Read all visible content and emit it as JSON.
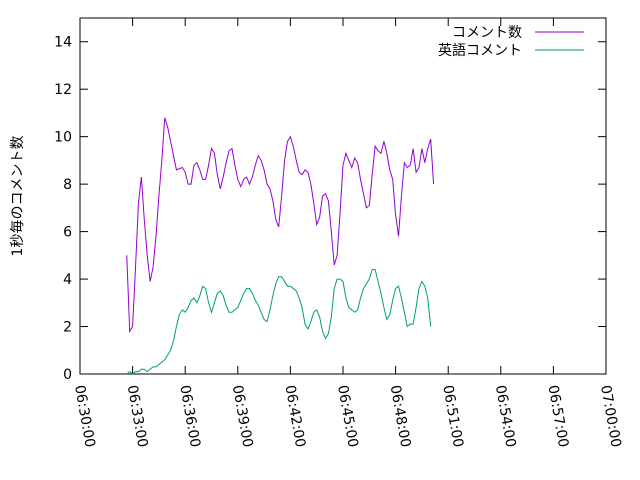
{
  "chart_data": {
    "type": "line",
    "title": "",
    "xlabel": "",
    "ylabel": "1秒毎のコメント数",
    "xlim": [
      "06:30:00",
      "07:00:00"
    ],
    "ylim": [
      0,
      15
    ],
    "grid": false,
    "legend": {
      "position": "top-right"
    },
    "x_ticks": [
      "06:30:00",
      "06:33:00",
      "06:36:00",
      "06:39:00",
      "06:42:00",
      "06:45:00",
      "06:48:00",
      "06:51:00",
      "06:54:00",
      "06:57:00",
      "07:00:00"
    ],
    "y_ticks": [
      0,
      2,
      4,
      6,
      8,
      10,
      12,
      14
    ],
    "series": [
      {
        "name": "コメント数",
        "color": "#9400d3",
        "points": [
          [
            "06:32:40",
            5.0
          ],
          [
            "06:32:50",
            1.8
          ],
          [
            "06:33:00",
            2.0
          ],
          [
            "06:33:10",
            4.5
          ],
          [
            "06:33:20",
            7.2
          ],
          [
            "06:33:30",
            8.3
          ],
          [
            "06:33:40",
            6.5
          ],
          [
            "06:33:50",
            5.0
          ],
          [
            "06:34:00",
            3.9
          ],
          [
            "06:34:10",
            4.5
          ],
          [
            "06:34:20",
            5.8
          ],
          [
            "06:34:30",
            7.5
          ],
          [
            "06:34:40",
            9.0
          ],
          [
            "06:34:50",
            10.8
          ],
          [
            "06:35:00",
            10.4
          ],
          [
            "06:35:10",
            9.8
          ],
          [
            "06:35:20",
            9.2
          ],
          [
            "06:35:30",
            8.6
          ],
          [
            "06:35:50",
            8.7
          ],
          [
            "06:36:00",
            8.5
          ],
          [
            "06:36:10",
            8.0
          ],
          [
            "06:36:20",
            8.0
          ],
          [
            "06:36:30",
            8.8
          ],
          [
            "06:36:40",
            8.9
          ],
          [
            "06:36:50",
            8.6
          ],
          [
            "06:37:00",
            8.2
          ],
          [
            "06:37:10",
            8.2
          ],
          [
            "06:37:20",
            8.8
          ],
          [
            "06:37:30",
            9.5
          ],
          [
            "06:37:40",
            9.3
          ],
          [
            "06:37:50",
            8.4
          ],
          [
            "06:38:00",
            7.8
          ],
          [
            "06:38:10",
            8.3
          ],
          [
            "06:38:20",
            8.9
          ],
          [
            "06:38:30",
            9.4
          ],
          [
            "06:38:40",
            9.5
          ],
          [
            "06:38:50",
            8.8
          ],
          [
            "06:39:00",
            8.2
          ],
          [
            "06:39:10",
            7.9
          ],
          [
            "06:39:20",
            8.2
          ],
          [
            "06:39:30",
            8.3
          ],
          [
            "06:39:40",
            8.0
          ],
          [
            "06:39:50",
            8.3
          ],
          [
            "06:40:00",
            8.8
          ],
          [
            "06:40:10",
            9.2
          ],
          [
            "06:40:20",
            9.0
          ],
          [
            "06:40:30",
            8.6
          ],
          [
            "06:40:40",
            8.0
          ],
          [
            "06:40:50",
            7.8
          ],
          [
            "06:41:00",
            7.3
          ],
          [
            "06:41:10",
            6.5
          ],
          [
            "06:41:20",
            6.2
          ],
          [
            "06:41:30",
            7.5
          ],
          [
            "06:41:40",
            9.0
          ],
          [
            "06:41:50",
            9.8
          ],
          [
            "06:42:00",
            10.0
          ],
          [
            "06:42:10",
            9.6
          ],
          [
            "06:42:20",
            9.0
          ],
          [
            "06:42:30",
            8.5
          ],
          [
            "06:42:40",
            8.4
          ],
          [
            "06:42:50",
            8.6
          ],
          [
            "06:43:00",
            8.5
          ],
          [
            "06:43:10",
            8.0
          ],
          [
            "06:43:20",
            7.2
          ],
          [
            "06:43:30",
            6.3
          ],
          [
            "06:43:40",
            6.6
          ],
          [
            "06:43:50",
            7.5
          ],
          [
            "06:44:00",
            7.6
          ],
          [
            "06:44:10",
            7.3
          ],
          [
            "06:44:20",
            6.0
          ],
          [
            "06:44:30",
            4.6
          ],
          [
            "06:44:40",
            5.0
          ],
          [
            "06:44:50",
            6.8
          ],
          [
            "06:45:00",
            8.8
          ],
          [
            "06:45:10",
            9.3
          ],
          [
            "06:45:20",
            9.0
          ],
          [
            "06:45:30",
            8.7
          ],
          [
            "06:45:40",
            9.1
          ],
          [
            "06:45:50",
            8.9
          ],
          [
            "06:46:00",
            8.2
          ],
          [
            "06:46:10",
            7.6
          ],
          [
            "06:46:20",
            7.0
          ],
          [
            "06:46:30",
            7.1
          ],
          [
            "06:46:40",
            8.4
          ],
          [
            "06:46:50",
            9.6
          ],
          [
            "06:47:00",
            9.4
          ],
          [
            "06:47:10",
            9.3
          ],
          [
            "06:47:20",
            9.8
          ],
          [
            "06:47:30",
            9.3
          ],
          [
            "06:47:40",
            8.6
          ],
          [
            "06:47:50",
            8.2
          ],
          [
            "06:48:00",
            6.7
          ],
          [
            "06:48:10",
            5.8
          ],
          [
            "06:48:20",
            7.5
          ],
          [
            "06:48:30",
            8.9
          ],
          [
            "06:48:40",
            8.7
          ],
          [
            "06:48:50",
            8.8
          ],
          [
            "06:49:00",
            9.5
          ],
          [
            "06:49:10",
            8.5
          ],
          [
            "06:49:20",
            8.7
          ],
          [
            "06:49:30",
            9.5
          ],
          [
            "06:49:40",
            8.9
          ],
          [
            "06:49:50",
            9.5
          ],
          [
            "06:50:00",
            9.9
          ],
          [
            "06:50:10",
            8.0
          ]
        ]
      },
      {
        "name": "英語コメント",
        "color": "#009e73",
        "points": [
          [
            "06:32:40",
            0.0
          ],
          [
            "06:32:50",
            0.1
          ],
          [
            "06:33:00",
            0.0
          ],
          [
            "06:33:10",
            0.1
          ],
          [
            "06:33:20",
            0.1
          ],
          [
            "06:33:30",
            0.2
          ],
          [
            "06:33:40",
            0.2
          ],
          [
            "06:33:50",
            0.1
          ],
          [
            "06:34:00",
            0.2
          ],
          [
            "06:34:10",
            0.3
          ],
          [
            "06:34:20",
            0.3
          ],
          [
            "06:34:30",
            0.4
          ],
          [
            "06:34:40",
            0.5
          ],
          [
            "06:34:50",
            0.6
          ],
          [
            "06:35:00",
            0.8
          ],
          [
            "06:35:10",
            1.0
          ],
          [
            "06:35:20",
            1.4
          ],
          [
            "06:35:30",
            2.0
          ],
          [
            "06:35:40",
            2.5
          ],
          [
            "06:35:50",
            2.7
          ],
          [
            "06:36:00",
            2.6
          ],
          [
            "06:36:10",
            2.8
          ],
          [
            "06:36:20",
            3.1
          ],
          [
            "06:36:30",
            3.2
          ],
          [
            "06:36:40",
            3.0
          ],
          [
            "06:36:50",
            3.3
          ],
          [
            "06:37:00",
            3.7
          ],
          [
            "06:37:10",
            3.6
          ],
          [
            "06:37:20",
            3.0
          ],
          [
            "06:37:30",
            2.6
          ],
          [
            "06:37:40",
            3.0
          ],
          [
            "06:37:50",
            3.4
          ],
          [
            "06:38:00",
            3.5
          ],
          [
            "06:38:10",
            3.3
          ],
          [
            "06:38:20",
            2.9
          ],
          [
            "06:38:30",
            2.6
          ],
          [
            "06:38:40",
            2.6
          ],
          [
            "06:38:50",
            2.7
          ],
          [
            "06:39:00",
            2.8
          ],
          [
            "06:39:10",
            3.1
          ],
          [
            "06:39:20",
            3.4
          ],
          [
            "06:39:30",
            3.6
          ],
          [
            "06:39:40",
            3.6
          ],
          [
            "06:39:50",
            3.4
          ],
          [
            "06:40:00",
            3.1
          ],
          [
            "06:40:10",
            2.9
          ],
          [
            "06:40:20",
            2.6
          ],
          [
            "06:40:30",
            2.3
          ],
          [
            "06:40:40",
            2.2
          ],
          [
            "06:40:50",
            2.7
          ],
          [
            "06:41:00",
            3.3
          ],
          [
            "06:41:10",
            3.8
          ],
          [
            "06:41:20",
            4.1
          ],
          [
            "06:41:30",
            4.1
          ],
          [
            "06:41:40",
            3.9
          ],
          [
            "06:41:50",
            3.7
          ],
          [
            "06:42:00",
            3.7
          ],
          [
            "06:42:10",
            3.6
          ],
          [
            "06:42:20",
            3.5
          ],
          [
            "06:42:30",
            3.2
          ],
          [
            "06:42:40",
            2.8
          ],
          [
            "06:42:50",
            2.1
          ],
          [
            "06:43:00",
            1.9
          ],
          [
            "06:43:10",
            2.2
          ],
          [
            "06:43:20",
            2.6
          ],
          [
            "06:43:30",
            2.7
          ],
          [
            "06:43:40",
            2.4
          ],
          [
            "06:43:50",
            1.8
          ],
          [
            "06:44:00",
            1.5
          ],
          [
            "06:44:10",
            1.7
          ],
          [
            "06:44:20",
            2.4
          ],
          [
            "06:44:30",
            3.6
          ],
          [
            "06:44:40",
            4.0
          ],
          [
            "06:44:50",
            4.0
          ],
          [
            "06:45:00",
            3.9
          ],
          [
            "06:45:10",
            3.2
          ],
          [
            "06:45:20",
            2.8
          ],
          [
            "06:45:30",
            2.7
          ],
          [
            "06:45:40",
            2.6
          ],
          [
            "06:45:50",
            2.7
          ],
          [
            "06:46:00",
            3.2
          ],
          [
            "06:46:10",
            3.6
          ],
          [
            "06:46:20",
            3.8
          ],
          [
            "06:46:30",
            4.0
          ],
          [
            "06:46:40",
            4.4
          ],
          [
            "06:46:50",
            4.4
          ],
          [
            "06:47:00",
            3.9
          ],
          [
            "06:47:10",
            3.4
          ],
          [
            "06:47:20",
            2.8
          ],
          [
            "06:47:30",
            2.3
          ],
          [
            "06:47:40",
            2.5
          ],
          [
            "06:47:50",
            3.1
          ],
          [
            "06:48:00",
            3.6
          ],
          [
            "06:48:10",
            3.7
          ],
          [
            "06:48:20",
            3.2
          ],
          [
            "06:48:30",
            2.6
          ],
          [
            "06:48:40",
            2.0
          ],
          [
            "06:48:50",
            2.1
          ],
          [
            "06:49:00",
            2.1
          ],
          [
            "06:49:10",
            2.8
          ],
          [
            "06:49:20",
            3.6
          ],
          [
            "06:49:30",
            3.9
          ],
          [
            "06:49:40",
            3.7
          ],
          [
            "06:49:50",
            3.2
          ],
          [
            "06:50:00",
            2.0
          ]
        ]
      }
    ]
  }
}
